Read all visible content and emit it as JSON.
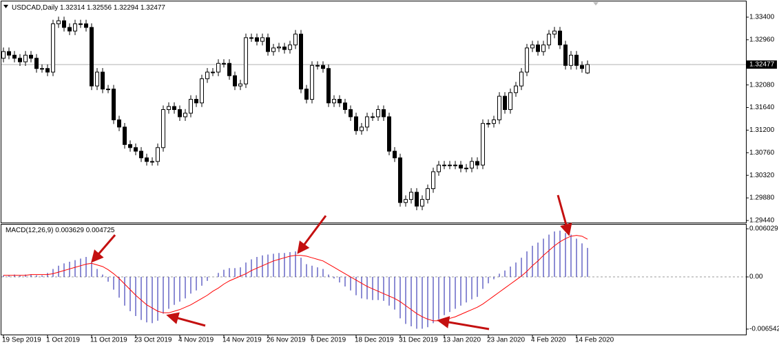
{
  "chart_data": [
    {
      "type": "candlestick",
      "title": "USDCAD,Daily",
      "categories": [
        "19 Sep 2019",
        null,
        null,
        null,
        null,
        null,
        null,
        null,
        "1 Oct 2019",
        null,
        null,
        null,
        null,
        null,
        null,
        null,
        "11 Oct 2019",
        null,
        null,
        null,
        null,
        null,
        null,
        null,
        "23 Oct 2019",
        null,
        null,
        null,
        null,
        null,
        null,
        null,
        "4 Nov 2019",
        null,
        null,
        null,
        null,
        null,
        null,
        null,
        "14 Nov 2019",
        null,
        null,
        null,
        null,
        null,
        null,
        null,
        "26 Nov 2019",
        null,
        null,
        null,
        null,
        null,
        null,
        null,
        "6 Dec 2019",
        null,
        null,
        null,
        null,
        null,
        null,
        null,
        "18 Dec 2019",
        null,
        null,
        null,
        null,
        null,
        null,
        null,
        "31 Dec 2019",
        null,
        null,
        null,
        null,
        null,
        null,
        null,
        "13 Jan 2020",
        null,
        null,
        null,
        null,
        null,
        null,
        null,
        "23 Jan 2020",
        null,
        null,
        null,
        null,
        null,
        null,
        null,
        "4 Feb 2020",
        null,
        null,
        null,
        null,
        null,
        null,
        null,
        "14 Feb 2020",
        null,
        null
      ],
      "open": [
        1.326,
        1.3273,
        1.3266,
        1.326,
        1.3253,
        1.3266,
        1.326,
        1.324,
        1.324,
        1.3233,
        1.3327,
        1.3333,
        1.332,
        1.3313,
        1.3327,
        1.3327,
        1.332,
        1.3206,
        1.3233,
        1.32,
        1.32,
        1.314,
        1.3126,
        1.3092,
        1.3086,
        1.3079,
        1.3066,
        1.3059,
        1.3059,
        1.3086,
        1.316,
        1.3166,
        1.316,
        1.3146,
        1.3153,
        1.318,
        1.3173,
        1.322,
        1.3233,
        1.3233,
        1.325,
        1.325,
        1.3226,
        1.3206,
        1.321,
        1.33,
        1.33,
        1.3293,
        1.33,
        1.3273,
        1.328,
        1.3282,
        1.3277,
        1.3286,
        1.3307,
        1.32,
        1.318,
        1.3246,
        1.3246,
        1.324,
        1.3173,
        1.318,
        1.3173,
        1.316,
        1.3146,
        1.3119,
        1.3126,
        1.3146,
        1.3146,
        1.316,
        1.3146,
        1.3079,
        1.3066,
        1.2979,
        1.2985,
        1.2999,
        1.2972,
        1.2985,
        1.3006,
        1.3039,
        1.3052,
        1.3052,
        1.3052,
        1.3052,
        1.3046,
        1.3046,
        1.3059,
        1.3052,
        1.3133,
        1.3133,
        1.314,
        1.3186,
        1.316,
        1.3193,
        1.3206,
        1.3233,
        1.328,
        1.3286,
        1.3273,
        1.3286,
        1.3307,
        1.3313,
        1.3286,
        1.3246,
        1.3266,
        1.3246,
        1.32314
      ],
      "high": [
        1.3281,
        1.3281,
        1.3274,
        1.3268,
        1.3274,
        1.3274,
        1.3268,
        1.3248,
        1.3248,
        1.3335,
        1.3341,
        1.3341,
        1.3328,
        1.3335,
        1.3335,
        1.3335,
        1.3328,
        1.3241,
        1.3241,
        1.3208,
        1.3208,
        1.3148,
        1.3134,
        1.31,
        1.3094,
        1.3087,
        1.3074,
        1.3067,
        1.3094,
        1.3168,
        1.3174,
        1.3174,
        1.3168,
        1.3161,
        1.3188,
        1.3188,
        1.3228,
        1.3241,
        1.3241,
        1.3258,
        1.3258,
        1.3258,
        1.3234,
        1.3218,
        1.3308,
        1.3308,
        1.3308,
        1.3308,
        1.3308,
        1.3288,
        1.329,
        1.329,
        1.3294,
        1.3315,
        1.3315,
        1.3208,
        1.3254,
        1.3254,
        1.3254,
        1.3248,
        1.3188,
        1.3188,
        1.3181,
        1.3168,
        1.3154,
        1.3134,
        1.3154,
        1.3154,
        1.3168,
        1.3168,
        1.3154,
        1.3087,
        1.3074,
        1.2993,
        1.3007,
        1.3007,
        1.2993,
        1.3014,
        1.3047,
        1.306,
        1.306,
        1.306,
        1.306,
        1.306,
        1.3054,
        1.3067,
        1.3067,
        1.3141,
        1.3141,
        1.3148,
        1.3194,
        1.3194,
        1.3201,
        1.3214,
        1.3241,
        1.3288,
        1.3294,
        1.3294,
        1.3294,
        1.3315,
        1.3321,
        1.3321,
        1.3294,
        1.3274,
        1.3274,
        1.3254,
        1.32556
      ],
      "low": [
        1.3252,
        1.3258,
        1.3252,
        1.3245,
        1.3245,
        1.3252,
        1.3232,
        1.3232,
        1.3225,
        1.3225,
        1.3319,
        1.3312,
        1.3305,
        1.3305,
        1.3319,
        1.3312,
        1.3198,
        1.3198,
        1.3192,
        1.3192,
        1.3132,
        1.3118,
        1.3084,
        1.3078,
        1.3071,
        1.3058,
        1.3051,
        1.3051,
        1.3051,
        1.3078,
        1.3152,
        1.3152,
        1.3138,
        1.3138,
        1.3145,
        1.3165,
        1.3165,
        1.3212,
        1.3225,
        1.3225,
        1.3242,
        1.3218,
        1.3198,
        1.3198,
        1.3202,
        1.3292,
        1.3285,
        1.3285,
        1.3265,
        1.3265,
        1.3272,
        1.3269,
        1.3269,
        1.3278,
        1.3192,
        1.3172,
        1.3172,
        1.3238,
        1.3232,
        1.3165,
        1.3165,
        1.3165,
        1.3152,
        1.3138,
        1.3111,
        1.3111,
        1.3118,
        1.3138,
        1.3138,
        1.3138,
        1.3071,
        1.3058,
        1.2971,
        1.2971,
        1.2977,
        1.2964,
        1.2964,
        1.2977,
        1.2998,
        1.3031,
        1.3044,
        1.3044,
        1.3044,
        1.3038,
        1.3038,
        1.3038,
        1.3044,
        1.3044,
        1.3125,
        1.3125,
        1.3132,
        1.3152,
        1.3152,
        1.3185,
        1.3198,
        1.3225,
        1.3272,
        1.3265,
        1.3265,
        1.3278,
        1.3299,
        1.3278,
        1.3238,
        1.3238,
        1.3238,
        1.3232,
        1.32294
      ],
      "close": [
        1.3273,
        1.3266,
        1.326,
        1.3253,
        1.3266,
        1.326,
        1.324,
        1.324,
        1.3233,
        1.3327,
        1.3333,
        1.332,
        1.3313,
        1.3327,
        1.3327,
        1.332,
        1.3206,
        1.3233,
        1.32,
        1.32,
        1.314,
        1.3126,
        1.3092,
        1.3086,
        1.3079,
        1.3066,
        1.3059,
        1.3059,
        1.3086,
        1.316,
        1.3166,
        1.316,
        1.3146,
        1.3153,
        1.318,
        1.3173,
        1.322,
        1.3233,
        1.3233,
        1.325,
        1.325,
        1.3226,
        1.3206,
        1.321,
        1.33,
        1.33,
        1.3293,
        1.33,
        1.3273,
        1.328,
        1.3282,
        1.3277,
        1.3286,
        1.3307,
        1.32,
        1.318,
        1.3246,
        1.3246,
        1.324,
        1.3173,
        1.318,
        1.3173,
        1.316,
        1.3146,
        1.3119,
        1.3126,
        1.3146,
        1.3146,
        1.316,
        1.3146,
        1.3079,
        1.3066,
        1.2979,
        1.2985,
        1.2999,
        1.2972,
        1.2985,
        1.3006,
        1.3039,
        1.3052,
        1.3052,
        1.3052,
        1.3052,
        1.3046,
        1.3046,
        1.3059,
        1.3052,
        1.3133,
        1.3133,
        1.314,
        1.3186,
        1.316,
        1.3193,
        1.3206,
        1.3233,
        1.328,
        1.3286,
        1.3273,
        1.3286,
        1.3307,
        1.3313,
        1.3286,
        1.3246,
        1.3266,
        1.3246,
        1.324,
        1.32477
      ],
      "up_color": "#ffffff",
      "down_color": "#000000",
      "wick_color": "#000000",
      "ylim": [
        1.29386,
        1.33694
      ],
      "yticks": [
        {
          "value": 1.334,
          "label": "1.33400"
        },
        {
          "value": 1.3296,
          "label": "1.32960"
        },
        {
          "value": 1.3208,
          "label": "1.32080"
        },
        {
          "value": 1.3164,
          "label": "1.31640"
        },
        {
          "value": 1.312,
          "label": "1.31200"
        },
        {
          "value": 1.3076,
          "label": "1.30760"
        },
        {
          "value": 1.3032,
          "label": "1.30320"
        },
        {
          "value": 1.2988,
          "label": "1.29880"
        },
        {
          "value": 1.2944,
          "label": "1.29440"
        }
      ]
    },
    {
      "type": "macd",
      "title": "MACD(12,26,9)",
      "series": [
        {
          "color": "#1a1aa8",
          "values": [
            0.0002,
            0.0002,
            0.0003,
            0.0002,
            0.0003,
            0.0003,
            0.0002,
            0.0002,
            0.0005,
            0.001,
            0.0014,
            0.0017,
            0.0019,
            0.0021,
            0.0023,
            0.0025,
            0.0018,
            0.001,
            0.0003,
            -0.0006,
            -0.0016,
            -0.0026,
            -0.0036,
            -0.0043,
            -0.0049,
            -0.0054,
            -0.0057,
            -0.0058,
            -0.0055,
            -0.0046,
            -0.004,
            -0.0035,
            -0.0031,
            -0.0027,
            -0.0021,
            -0.0017,
            -0.0011,
            -0.0005,
            0,
            0.0005,
            0.0009,
            0.0011,
            0.0011,
            0.0012,
            0.0018,
            0.0022,
            0.0025,
            0.0027,
            0.0028,
            0.0029,
            0.003,
            0.003,
            0.0031,
            0.0032,
            0.0024,
            0.0016,
            0.0014,
            0.0012,
            0.001,
            0.0003,
            -0.0002,
            -0.0007,
            -0.0012,
            -0.0017,
            -0.0023,
            -0.0027,
            -0.0028,
            -0.0029,
            -0.0029,
            -0.003,
            -0.0036,
            -0.0041,
            -0.0052,
            -0.0059,
            -0.0062,
            -0.0065,
            -0.0065,
            -0.0063,
            -0.0058,
            -0.0053,
            -0.0048,
            -0.0044,
            -0.004,
            -0.0036,
            -0.0032,
            -0.0028,
            -0.0025,
            -0.0015,
            -0.0008,
            -0.0003,
            0.0004,
            0.0008,
            0.0013,
            0.0018,
            0.0024,
            0.0032,
            0.0039,
            0.0043,
            0.0048,
            0.0053,
            0.0057,
            0.0058,
            0.0055,
            0.0053,
            0.0048,
            0.0042,
            0.003629
          ]
        },
        {
          "color": "#ff0000",
          "values": [
            0.0002,
            0.0002,
            0.0002,
            0.0002,
            0.0002,
            0.0003,
            0.0003,
            0.0003,
            0.0003,
            0.0004,
            0.0006,
            0.0008,
            0.001,
            0.0012,
            0.0014,
            0.0016,
            0.0017,
            0.0015,
            0.0013,
            0.0009,
            0.0004,
            -0.0002,
            -0.0009,
            -0.0016,
            -0.0023,
            -0.0029,
            -0.0035,
            -0.0039,
            -0.0043,
            -0.0045,
            -0.0045,
            -0.0043,
            -0.0041,
            -0.0038,
            -0.0035,
            -0.0031,
            -0.0027,
            -0.0023,
            -0.0018,
            -0.0014,
            -0.0009,
            -0.0005,
            -0.0002,
            0.0001,
            0.0004,
            0.0008,
            0.0011,
            0.0014,
            0.0017,
            0.002,
            0.0022,
            0.0024,
            0.0026,
            0.0027,
            0.0027,
            0.0026,
            0.0024,
            0.0022,
            0.002,
            0.0016,
            0.0012,
            0.0008,
            0.0004,
            0,
            -0.0004,
            -0.0008,
            -0.0012,
            -0.0015,
            -0.0018,
            -0.0021,
            -0.0024,
            -0.0027,
            -0.0031,
            -0.0036,
            -0.0041,
            -0.0046,
            -0.005,
            -0.0053,
            -0.0055,
            -0.0055,
            -0.0054,
            -0.0052,
            -0.005,
            -0.0047,
            -0.0044,
            -0.0041,
            -0.0038,
            -0.0034,
            -0.0029,
            -0.0024,
            -0.0019,
            -0.0014,
            -0.0009,
            -0.0004,
            0.0001,
            0.0007,
            0.0014,
            0.002,
            0.0027,
            0.0033,
            0.0039,
            0.0044,
            0.0048,
            0.0051,
            0.0052,
            0.0051,
            0.004725
          ]
        }
      ],
      "ylim": [
        -0.00723,
        0.00655
      ],
      "yticks": [
        0.006029,
        {
          "value": 0,
          "label": "0.00"
        },
        -0.006542
      ]
    }
  ]
}
